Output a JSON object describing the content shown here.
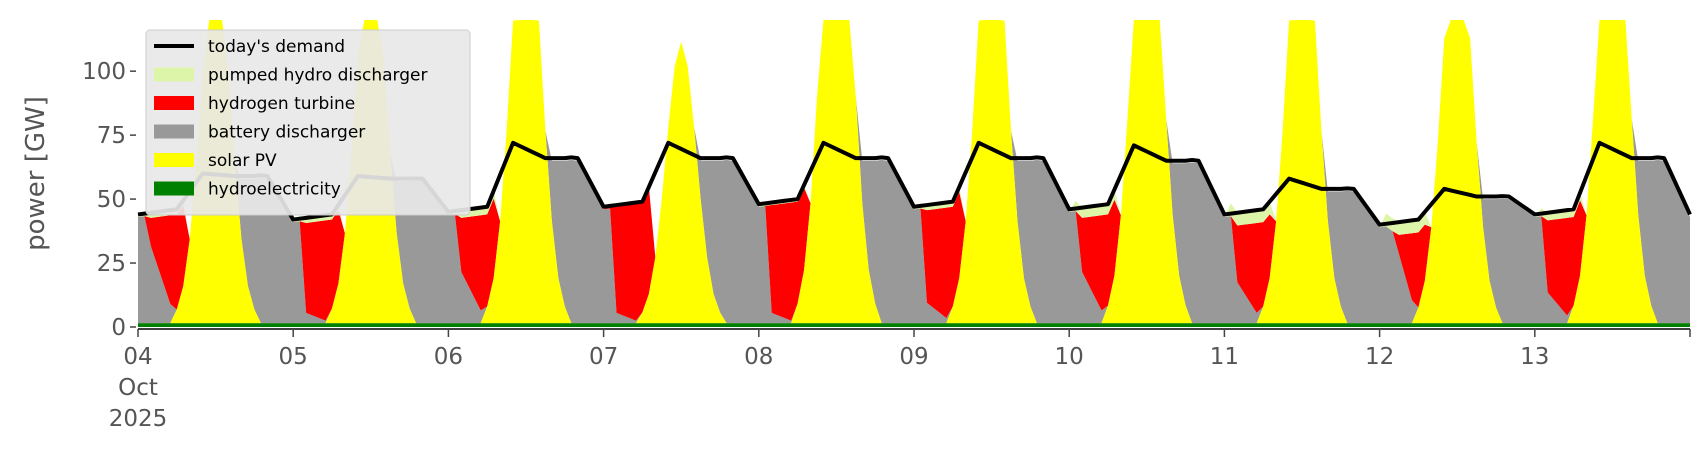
{
  "chart_data": {
    "type": "area",
    "stacked": true,
    "ylabel": "power [GW]",
    "xlabel": "",
    "ylim": [
      0,
      120
    ],
    "xlim": [
      0,
      240
    ],
    "x_units": "hours since 2025-10-04 00:00 (tick labels are day-of-month)",
    "yticks": [
      0,
      25,
      50,
      75,
      100
    ],
    "ytick_labels": [
      "0",
      "25",
      "50",
      "75",
      "100"
    ],
    "xticks": [
      0,
      24,
      48,
      72,
      96,
      120,
      144,
      168,
      192,
      216
    ],
    "xtick_labels": [
      "04",
      "05",
      "06",
      "07",
      "08",
      "09",
      "10",
      "11",
      "12",
      "13"
    ],
    "xtick_sub": [
      "Oct",
      "2025"
    ],
    "grid": false,
    "legend_position": "top-left",
    "legend": [
      {
        "label": "today's demand",
        "kind": "line",
        "color": "#000000"
      },
      {
        "label": "pumped hydro discharger",
        "kind": "patch",
        "color": "#dcf5a8"
      },
      {
        "label": "hydrogen turbine",
        "kind": "patch",
        "color": "#ff0000"
      },
      {
        "label": "battery discharger",
        "kind": "patch",
        "color": "#999999"
      },
      {
        "label": "solar PV",
        "kind": "patch",
        "color": "#ffff00"
      },
      {
        "label": "hydroelectricity",
        "kind": "patch",
        "color": "#008000"
      }
    ],
    "days": [
      {
        "base": 44,
        "h2": 15,
        "h2_night": 25,
        "evening": [
          66,
          59
        ],
        "evening_bat": [
          66,
          59
        ],
        "pumped": 2,
        "peak": 60,
        "solar_peak": 140
      },
      {
        "base": 42,
        "h2": 2,
        "h2_night": 38,
        "evening": [
          59,
          58
        ],
        "evening_bat": [
          59,
          58
        ],
        "pumped": 2,
        "peak": 59,
        "solar_peak": 150
      },
      {
        "base": 45,
        "h2": 10,
        "h2_night": 40,
        "evening": [
          72,
          66
        ],
        "evening_bat": [
          52,
          58
        ],
        "pumped": 3,
        "peak": 72,
        "solar_peak": 170
      },
      {
        "base": 47,
        "h2": 2,
        "h2_night": 45,
        "evening": [
          72,
          66
        ],
        "evening_bat": [
          0,
          0
        ],
        "pumped": 0,
        "peak": 72,
        "solar_peak": 110
      },
      {
        "base": 48,
        "h2": 2,
        "h2_night": 46,
        "evening": [
          72,
          66
        ],
        "evening_bat": [
          0,
          0
        ],
        "pumped": 1,
        "peak": 72,
        "solar_peak": 200
      },
      {
        "base": 47,
        "h2": 4,
        "h2_night": 45,
        "evening": [
          72,
          66
        ],
        "evening_bat": [
          66,
          64
        ],
        "pumped": 2,
        "peak": 72,
        "solar_peak": 170
      },
      {
        "base": 46,
        "h2": 10,
        "h2_night": 42,
        "evening": [
          71,
          65
        ],
        "evening_bat": [
          65,
          64
        ],
        "pumped": 4,
        "peak": 71,
        "solar_peak": 180
      },
      {
        "base": 44,
        "h2": 8,
        "h2_night": 38,
        "evening": [
          58,
          54
        ],
        "evening_bat": [
          58,
          54
        ],
        "pumped": 5,
        "peak": 58,
        "solar_peak": 170
      },
      {
        "base": 40,
        "h2": 18,
        "h2_night": 33,
        "evening": [
          54,
          51
        ],
        "evening_bat": [
          54,
          51
        ],
        "pumped": 5,
        "peak": 54,
        "solar_peak": 160
      },
      {
        "base": 44,
        "h2": 6,
        "h2_night": 40,
        "evening": [
          72,
          66
        ],
        "evening_bat": [
          66,
          64
        ],
        "pumped": 3,
        "peak": 72,
        "solar_peak": 180
      }
    ],
    "hydro_level": 1.5
  }
}
